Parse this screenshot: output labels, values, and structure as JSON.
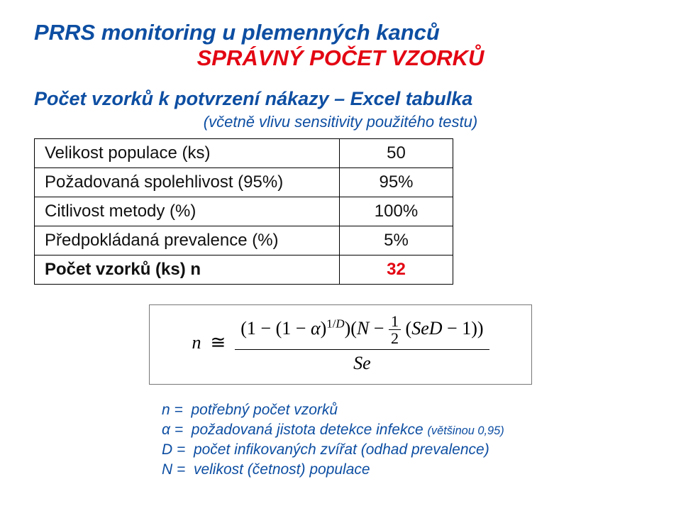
{
  "colors": {
    "title": "#0d4ea2",
    "subtitle": "#e30613",
    "heading": "#0d4ea2",
    "paren": "#0d4ea2",
    "body": "#111111",
    "result_value": "#e30613",
    "legend": "#0d4ea2"
  },
  "fonts": {
    "title_size": 31,
    "subtitle_size": 31,
    "heading_size": 27,
    "paren_size": 22,
    "table_size": 24,
    "formula_size": 26,
    "legend_size": 21
  },
  "title": "PRRS monitoring u plemenných kanců",
  "subtitle": "SPRÁVNÝ POČET VZORKŮ",
  "section_heading": "Počet vzorků k potvrzení nákazy – Excel tabulka",
  "paren_note": "(včetně vlivu sensitivity použitého testu)",
  "table": {
    "rows": [
      {
        "label": "Velikost populace (ks)",
        "value": "50"
      },
      {
        "label": "Požadovaná spolehlivost (95%)",
        "value": "95%"
      },
      {
        "label": "Citlivost metody (%)",
        "value": "100%"
      },
      {
        "label": "Předpokládaná prevalence (%)",
        "value": "5%"
      }
    ],
    "result": {
      "label": "Počet vzorků (ks)  n",
      "value": "32"
    }
  },
  "formula": {
    "n_sym": "n",
    "approx": "≅",
    "one1": "1",
    "minus1": "−",
    "lp1": "(",
    "one2": "1",
    "minus2": "−",
    "alpha": "α",
    "rp1": ")",
    "exp_open": "1/",
    "exp_D": "D",
    "rp_outer": ")",
    "lp_N": "(",
    "N": "N",
    "minus3": "−",
    "half_num": "1",
    "half_den": "2",
    "lp_SeD": "(",
    "SeD": "SeD",
    "minus4": "−",
    "one3": "1",
    "rp_SeD": ")",
    "rp_N": ")",
    "den": "Se"
  },
  "legend": {
    "n": {
      "sym": "n",
      "eq": "=",
      "text": "potřebný počet vzorků"
    },
    "alpha": {
      "sym": "α",
      "eq": "=",
      "text": "požadovaná jistota detekce infekce ",
      "sub": "(většinou 0,95)"
    },
    "D": {
      "sym": "D",
      "eq": "=",
      "text": "počet infikovaných zvířat (odhad prevalence)"
    },
    "N": {
      "sym": "N",
      "eq": "=",
      "text": "velikost (četnost) populace"
    }
  }
}
